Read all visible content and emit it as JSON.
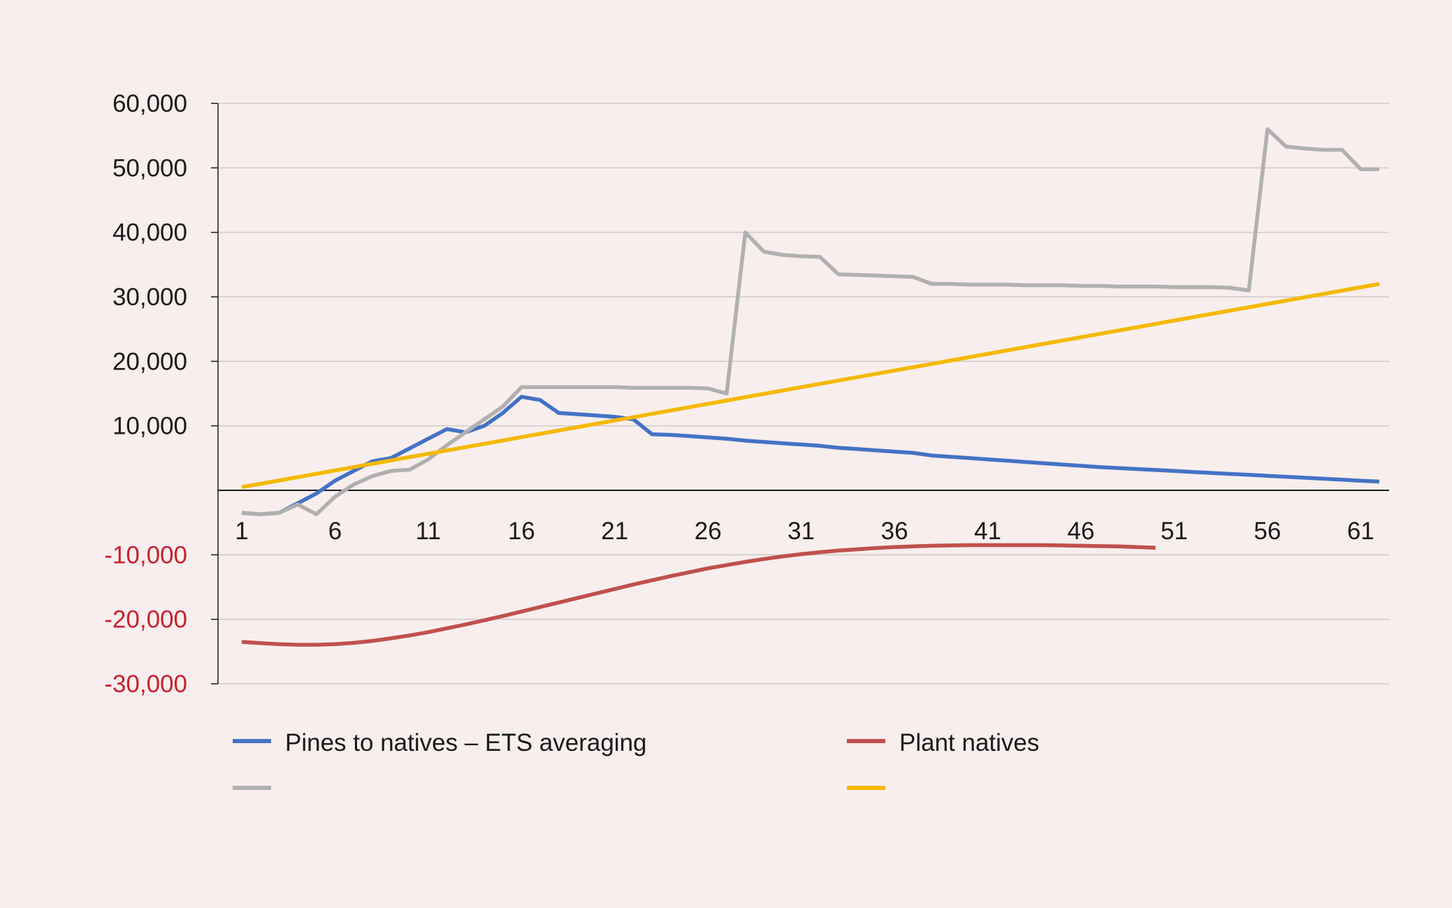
{
  "chart_data": {
    "type": "line",
    "title": "",
    "xlabel": "",
    "ylabel": "",
    "xlim": [
      1,
      62
    ],
    "ylim": [
      -30000,
      60000
    ],
    "y_ticks": [
      60000,
      50000,
      40000,
      30000,
      20000,
      10000,
      -10000,
      -20000,
      -30000
    ],
    "y_tick_labels": [
      "60,000",
      "50,000",
      "40,000",
      "30,000",
      "20,000",
      "10,000",
      "-10,000",
      "-20,000",
      "-30,000"
    ],
    "x_ticks": [
      1,
      6,
      11,
      16,
      21,
      26,
      31,
      36,
      41,
      46,
      51,
      56,
      61
    ],
    "x_tick_labels": [
      "1",
      "6",
      "11",
      "16",
      "21",
      "26",
      "31",
      "36",
      "41",
      "46",
      "51",
      "56",
      "61"
    ],
    "grid": true,
    "legend_position": "bottom",
    "colors": {
      "background": "#f8eeed",
      "grid": "#cfc9c9",
      "axis": "#1a1a1a",
      "negative_tick_text": "#c8202f"
    },
    "series": [
      {
        "name": "Pines to natives – ETS averaging",
        "color": "#4472c4",
        "x": [
          1,
          2,
          3,
          4,
          5,
          6,
          7,
          8,
          9,
          10,
          11,
          12,
          13,
          14,
          15,
          16,
          17,
          18,
          19,
          20,
          21,
          22,
          23,
          24,
          25,
          26,
          27,
          28,
          29,
          30,
          31,
          32,
          33,
          34,
          35,
          36,
          37,
          38,
          39,
          40,
          41,
          42,
          43,
          44,
          45,
          46,
          47,
          48,
          49,
          50,
          51,
          52,
          53,
          54,
          55,
          56,
          57,
          58,
          59,
          60,
          61,
          62
        ],
        "y": [
          -3500,
          -3700,
          -3500,
          -2000,
          -500,
          1500,
          3000,
          4500,
          5000,
          6500,
          8000,
          9500,
          9000,
          10000,
          12000,
          14500,
          14000,
          12000,
          11800,
          11600,
          11400,
          11000,
          8700,
          8600,
          8400,
          8200,
          8000,
          7700,
          7500,
          7300,
          7100,
          6900,
          6600,
          6400,
          6200,
          6000,
          5800,
          5400,
          5200,
          5000,
          4800,
          4600,
          4400,
          4200,
          4000,
          3800,
          3600,
          3450,
          3300,
          3150,
          3000,
          2850,
          2700,
          2550,
          2400,
          2250,
          2100,
          1950,
          1800,
          1650,
          1500,
          1350
        ]
      },
      {
        "name": "Plant natives",
        "color": "#c0504d",
        "x": [
          1,
          2,
          3,
          4,
          5,
          6,
          7,
          8,
          9,
          10,
          11,
          12,
          13,
          14,
          15,
          16,
          17,
          18,
          19,
          20,
          21,
          22,
          23,
          24,
          25,
          26,
          27,
          28,
          29,
          30,
          31,
          32,
          33,
          34,
          35,
          36,
          37,
          38,
          39,
          40,
          41,
          42,
          43,
          44,
          45,
          46,
          47,
          48,
          49,
          50
        ],
        "y": [
          -23500,
          -23700,
          -23850,
          -23950,
          -23950,
          -23850,
          -23650,
          -23350,
          -22950,
          -22500,
          -22000,
          -21400,
          -20800,
          -20150,
          -19500,
          -18800,
          -18100,
          -17400,
          -16700,
          -16000,
          -15300,
          -14600,
          -13950,
          -13300,
          -12700,
          -12100,
          -11600,
          -11100,
          -10650,
          -10250,
          -9900,
          -9600,
          -9350,
          -9150,
          -8950,
          -8800,
          -8700,
          -8600,
          -8550,
          -8500,
          -8500,
          -8500,
          -8500,
          -8500,
          -8550,
          -8600,
          -8650,
          -8700,
          -8800,
          -8900
        ]
      },
      {
        "name": "",
        "color": "#b0b0b0",
        "x": [
          1,
          2,
          3,
          4,
          5,
          6,
          7,
          8,
          9,
          10,
          11,
          12,
          13,
          14,
          15,
          16,
          17,
          18,
          19,
          20,
          21,
          22,
          23,
          24,
          25,
          26,
          27,
          28,
          29,
          30,
          31,
          32,
          33,
          34,
          35,
          36,
          37,
          38,
          39,
          40,
          41,
          42,
          43,
          44,
          45,
          46,
          47,
          48,
          49,
          50,
          51,
          52,
          53,
          54,
          55,
          56,
          57,
          58,
          59,
          60,
          61,
          62
        ],
        "y": [
          -3500,
          -3700,
          -3500,
          -2200,
          -3700,
          -1000,
          900,
          2200,
          3000,
          3200,
          4800,
          7000,
          9000,
          11000,
          13000,
          16000,
          16000,
          16000,
          16000,
          16000,
          16000,
          15900,
          15900,
          15900,
          15900,
          15800,
          15000,
          40000,
          37000,
          36500,
          36300,
          36200,
          33500,
          33400,
          33300,
          33200,
          33100,
          32000,
          32000,
          31900,
          31900,
          31900,
          31800,
          31800,
          31800,
          31700,
          31700,
          31600,
          31600,
          31600,
          31500,
          31500,
          31500,
          31400,
          31000,
          56000,
          53300,
          53000,
          52800,
          52800,
          49800,
          49800
        ]
      },
      {
        "name": "",
        "color": "#f5b800",
        "x": [
          1,
          62
        ],
        "y": [
          500,
          32000
        ]
      }
    ]
  }
}
